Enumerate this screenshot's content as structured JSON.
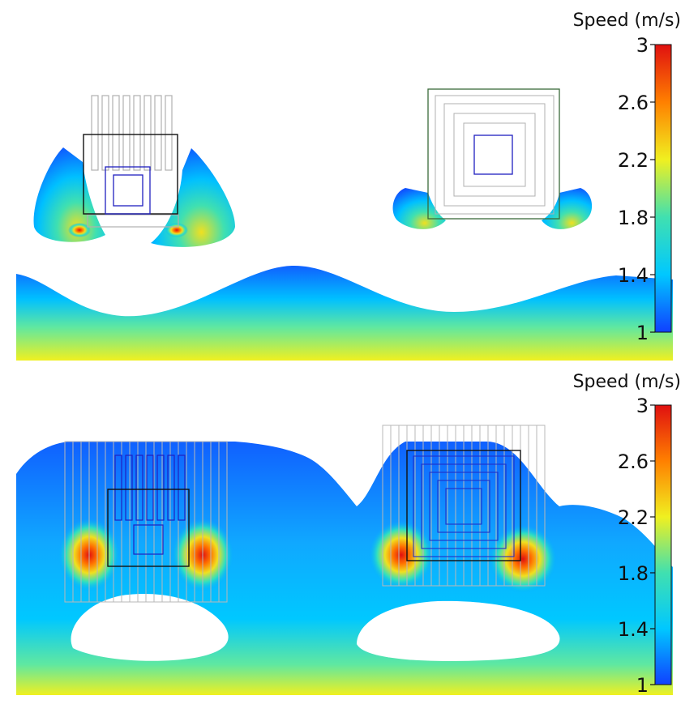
{
  "chart_data": [
    {
      "type": "heatmap",
      "panel": "top",
      "colorbar": {
        "title": "Speed (m/s)",
        "min": 1,
        "max": 3,
        "ticks": [
          "1",
          "1.4",
          "1.8",
          "2.2",
          "2.6",
          "3"
        ],
        "colors": [
          "#1040ff",
          "#00c8ff",
          "#40e0b0",
          "#f0f020",
          "#ff8000",
          "#e01010"
        ]
      }
    },
    {
      "type": "heatmap",
      "panel": "bottom",
      "colorbar": {
        "title": "Speed (m/s)",
        "min": 1,
        "max": 3,
        "ticks": [
          "1",
          "1.4",
          "1.8",
          "2.2",
          "2.6",
          "3"
        ],
        "colors": [
          "#1040ff",
          "#00c8ff",
          "#40e0b0",
          "#f0f020",
          "#ff8000",
          "#e01010"
        ]
      }
    }
  ]
}
